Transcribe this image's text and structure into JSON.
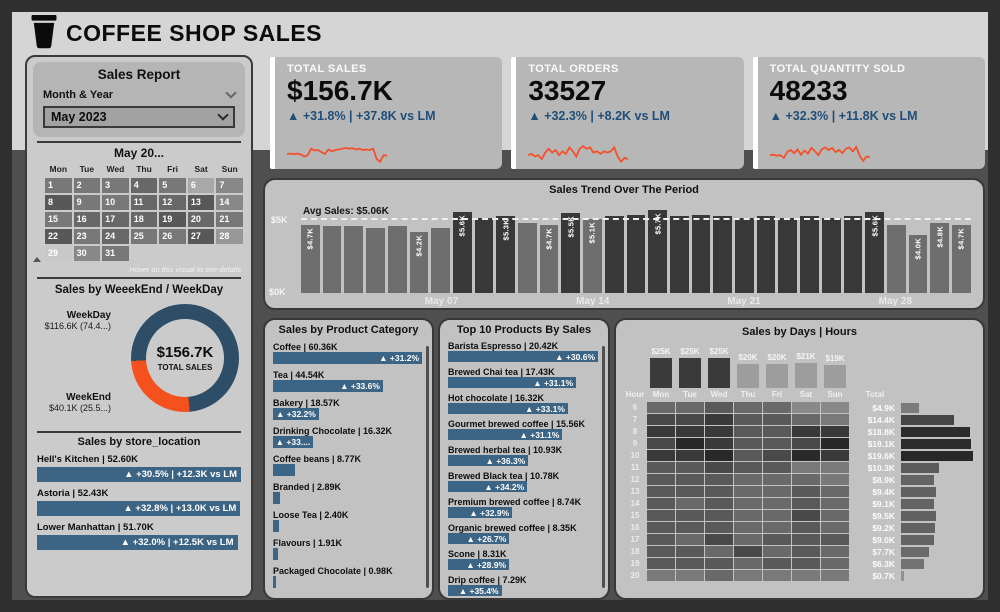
{
  "header": {
    "icon": "coffee-cup-icon",
    "title": "COFFEE SHOP SALES"
  },
  "colors": {
    "accent_blue": "#1f4e79",
    "bar_blue": "#3c6484",
    "orange": "#f4502a",
    "trend_dark": "#383838",
    "trend_gray": "#6e6e6e"
  },
  "sidebar": {
    "title": "Sales Report",
    "slicer": {
      "label": "Month & Year"
    },
    "dropdown": {
      "value": "May 2023"
    },
    "calendar": {
      "title": "May 20...",
      "weekdays": [
        "Mon",
        "Tue",
        "Wed",
        "Thu",
        "Fri",
        "Sat",
        "Sun"
      ],
      "note": "Hover on this visual to see details",
      "days": [
        {
          "day": 1,
          "heat": 5
        },
        {
          "day": 2,
          "heat": 5
        },
        {
          "day": 3,
          "heat": 5
        },
        {
          "day": 4,
          "heat": 6
        },
        {
          "day": 5,
          "heat": 5
        },
        {
          "day": 6,
          "heat": 2
        },
        {
          "day": 7,
          "heat": 4
        },
        {
          "day": 8,
          "heat": 7
        },
        {
          "day": 9,
          "heat": 5
        },
        {
          "day": 10,
          "heat": 5
        },
        {
          "day": 11,
          "heat": 6
        },
        {
          "day": 12,
          "heat": 6
        },
        {
          "day": 13,
          "heat": 7
        },
        {
          "day": 14,
          "heat": 4
        },
        {
          "day": 15,
          "heat": 5
        },
        {
          "day": 16,
          "heat": 6
        },
        {
          "day": 17,
          "heat": 6
        },
        {
          "day": 18,
          "heat": 6
        },
        {
          "day": 19,
          "heat": 7
        },
        {
          "day": 20,
          "heat": 6
        },
        {
          "day": 21,
          "heat": 5
        },
        {
          "day": 22,
          "heat": 7
        },
        {
          "day": 23,
          "heat": 5
        },
        {
          "day": 24,
          "heat": 6
        },
        {
          "day": 25,
          "heat": 5
        },
        {
          "day": 26,
          "heat": 5
        },
        {
          "day": 27,
          "heat": 7
        },
        {
          "day": 28,
          "heat": 3
        },
        {
          "day": 29,
          "heat": 0
        },
        {
          "day": 30,
          "heat": 4
        },
        {
          "day": 31,
          "heat": 5
        }
      ]
    }
  },
  "kpis": [
    {
      "title": "TOTAL SALES",
      "value": "$156.7K",
      "delta": "▲ +31.8% | +37.8K vs LM",
      "spark": [
        3.5,
        3.6,
        3.4,
        3.6,
        3.3,
        2.5,
        3.0,
        5.5,
        4.8,
        5.0,
        4.2,
        3.5,
        5.2,
        4.5,
        5.0,
        5.2,
        5.5,
        5.8,
        5.5,
        5.7,
        5.2,
        5.5,
        5.0,
        5.2,
        5.0,
        5.5,
        1.5,
        0.5,
        3.0,
        2.8
      ]
    },
    {
      "title": "TOTAL ORDERS",
      "value": "33527",
      "delta": "▲ +32.3% | +8.2K vs LM",
      "spark": [
        3.0,
        3.5,
        2.5,
        3.0,
        1.5,
        4.0,
        5.5,
        4.0,
        5.0,
        3.0,
        4.5,
        3.5,
        6.0,
        4.5,
        2.5,
        5.5,
        6.5,
        5.5,
        6.0,
        4.0,
        4.5,
        3.5,
        4.5,
        4.0,
        4.5,
        6.0,
        2.5,
        0.5,
        2.0,
        1.5
      ]
    },
    {
      "title": "TOTAL QUANTITY SOLD",
      "value": "48233",
      "delta": "▲ +32.3% | +11.8K vs LM",
      "spark": [
        3.0,
        3.2,
        2.8,
        3.0,
        2.0,
        4.2,
        5.0,
        3.8,
        5.2,
        3.2,
        4.8,
        3.6,
        5.8,
        4.6,
        3.0,
        5.2,
        6.0,
        5.0,
        5.8,
        4.2,
        5.0,
        3.8,
        5.5,
        6.0,
        4.5,
        6.2,
        2.8,
        0.8,
        2.5,
        2.2
      ]
    }
  ],
  "chart_data": [
    {
      "id": "sales_trend",
      "type": "bar",
      "title": "Sales Trend Over The Period",
      "avg_label": "Avg Sales: $5.06K",
      "avg_value": 5.06,
      "ylabel": "Sales",
      "ylim": [
        0,
        6
      ],
      "y_ticks": [
        "$5K",
        "$0K"
      ],
      "x_ticks": [
        {
          "label": "May 07",
          "day": 7
        },
        {
          "label": "May 14",
          "day": 14
        },
        {
          "label": "May 21",
          "day": 21
        },
        {
          "label": "May 28",
          "day": 28
        }
      ],
      "days": [
        {
          "day": 1,
          "value": 4.7,
          "label": "$4.7K"
        },
        {
          "day": 2,
          "value": 4.6
        },
        {
          "day": 3,
          "value": 4.6
        },
        {
          "day": 4,
          "value": 4.5
        },
        {
          "day": 5,
          "value": 4.6
        },
        {
          "day": 6,
          "value": 4.2,
          "label": "$4.2K"
        },
        {
          "day": 7,
          "value": 4.5
        },
        {
          "day": 8,
          "value": 5.6,
          "label": "$5.6K"
        },
        {
          "day": 9,
          "value": 5.2
        },
        {
          "day": 10,
          "value": 5.3,
          "label": "$5.3K"
        },
        {
          "day": 11,
          "value": 4.8
        },
        {
          "day": 12,
          "value": 4.7,
          "label": "$4.7K"
        },
        {
          "day": 13,
          "value": 5.5,
          "label": "$5.5K"
        },
        {
          "day": 14,
          "value": 5.1,
          "label": "$5.1K"
        },
        {
          "day": 15,
          "value": 5.3
        },
        {
          "day": 16,
          "value": 5.4
        },
        {
          "day": 17,
          "value": 5.7,
          "label": "$5.7K"
        },
        {
          "day": 18,
          "value": 5.3
        },
        {
          "day": 19,
          "value": 5.4
        },
        {
          "day": 20,
          "value": 5.3
        },
        {
          "day": 21,
          "value": 5.2
        },
        {
          "day": 22,
          "value": 5.3
        },
        {
          "day": 23,
          "value": 5.2
        },
        {
          "day": 24,
          "value": 5.3
        },
        {
          "day": 25,
          "value": 5.2
        },
        {
          "day": 26,
          "value": 5.3
        },
        {
          "day": 27,
          "value": 5.6,
          "label": "$5.6K"
        },
        {
          "day": 28,
          "value": 4.7
        },
        {
          "day": 29,
          "value": 4.0,
          "label": "$4.0K"
        },
        {
          "day": 30,
          "value": 4.8,
          "label": "$4.8K"
        },
        {
          "day": 31,
          "value": 4.7,
          "label": "$4.7K"
        }
      ]
    },
    {
      "id": "sales_by_product_category",
      "type": "bar",
      "title": "Sales by Product Category",
      "rows": [
        {
          "label": "Coffee | 60.36K",
          "value": 60.36,
          "delta": "▲ +31.2%"
        },
        {
          "label": "Tea | 44.54K",
          "value": 44.54,
          "delta": "▲ +33.6%"
        },
        {
          "label": "Bakery | 18.57K",
          "value": 18.57,
          "delta": "▲ +32.2%"
        },
        {
          "label": "Drinking Chocolate | 16.32K",
          "value": 16.32,
          "delta": "▲ +33...."
        },
        {
          "label": "Coffee beans | 8.77K",
          "value": 8.77,
          "delta": ""
        },
        {
          "label": "Branded | 2.89K",
          "value": 2.89,
          "delta": ""
        },
        {
          "label": "Loose Tea | 2.40K",
          "value": 2.4,
          "delta": ""
        },
        {
          "label": "Flavours | 1.91K",
          "value": 1.91,
          "delta": ""
        },
        {
          "label": "Packaged Chocolate | 0.98K",
          "value": 0.98,
          "delta": ""
        }
      ]
    },
    {
      "id": "top_10_products_by_sales",
      "type": "bar",
      "title": "Top 10 Products By Sales",
      "rows": [
        {
          "label": "Barista Espresso | 20.42K",
          "value": 20.42,
          "delta": "▲ +30.6%"
        },
        {
          "label": "Brewed Chai tea | 17.43K",
          "value": 17.43,
          "delta": "▲ +31.1%"
        },
        {
          "label": "Hot chocolate | 16.32K",
          "value": 16.32,
          "delta": "▲ +33.1%"
        },
        {
          "label": "Gourmet brewed coffee | 15.56K",
          "value": 15.56,
          "delta": "▲ +31.1%"
        },
        {
          "label": "Brewed herbal tea | 10.93K",
          "value": 10.93,
          "delta": "▲ +36.3%"
        },
        {
          "label": "Brewed Black tea | 10.78K",
          "value": 10.78,
          "delta": "▲ +34.2%"
        },
        {
          "label": "Premium brewed coffee | 8.74K",
          "value": 8.74,
          "delta": "▲ +32.9%"
        },
        {
          "label": "Organic brewed coffee | 8.35K",
          "value": 8.35,
          "delta": "▲ +26.7%"
        },
        {
          "label": "Scone | 8.31K",
          "value": 8.31,
          "delta": "▲ +28.9%"
        },
        {
          "label": "Drip coffee | 7.29K",
          "value": 7.29,
          "delta": "▲ +35.4%"
        }
      ]
    },
    {
      "id": "sales_by_days_hours",
      "type": "heatmap",
      "title": "Sales by Days | Hours",
      "corner_header": "Hour",
      "total_header": "Total",
      "col_max": 25,
      "total_max": 19.6,
      "day_columns": [
        {
          "day": "Mon",
          "label": "$25K",
          "value": 25,
          "dark": true
        },
        {
          "day": "Tue",
          "label": "$25K",
          "value": 25,
          "dark": true
        },
        {
          "day": "Wed",
          "label": "$25K",
          "value": 25,
          "dark": true
        },
        {
          "day": "Thu",
          "label": "$20K",
          "value": 20,
          "dark": false
        },
        {
          "day": "Fri",
          "label": "$20K",
          "value": 20,
          "dark": false
        },
        {
          "day": "Sat",
          "label": "$21K",
          "value": 21,
          "dark": false
        },
        {
          "day": "Sun",
          "label": "$19K",
          "value": 19,
          "dark": false
        }
      ],
      "rows": [
        {
          "hour": 6,
          "heat": [
            5,
            5,
            6,
            5,
            5,
            3,
            3
          ],
          "total": 4.9,
          "total_label": "$4.9K"
        },
        {
          "hour": 7,
          "heat": [
            7,
            7,
            8,
            6,
            6,
            5,
            4
          ],
          "total": 14.4,
          "total_label": "$14.4K"
        },
        {
          "hour": 8,
          "heat": [
            8,
            8,
            8,
            6,
            6,
            8,
            8
          ],
          "total": 18.8,
          "total_label": "$18.8K"
        },
        {
          "hour": 9,
          "heat": [
            7,
            9,
            8,
            6,
            6,
            7,
            9
          ],
          "total": 19.1,
          "total_label": "$19.1K"
        },
        {
          "hour": 10,
          "heat": [
            8,
            8,
            9,
            6,
            7,
            9,
            8
          ],
          "total": 19.6,
          "total_label": "$19.6K"
        },
        {
          "hour": 11,
          "heat": [
            6,
            6,
            7,
            6,
            6,
            4,
            4
          ],
          "total": 10.3,
          "total_label": "$10.3K"
        },
        {
          "hour": 12,
          "heat": [
            6,
            6,
            6,
            5,
            5,
            5,
            4
          ],
          "total": 8.9,
          "total_label": "$8.9K"
        },
        {
          "hour": 13,
          "heat": [
            6,
            6,
            6,
            5,
            5,
            6,
            5
          ],
          "total": 9.4,
          "total_label": "$9.4K"
        },
        {
          "hour": 14,
          "heat": [
            6,
            5,
            6,
            5,
            5,
            6,
            5
          ],
          "total": 9.1,
          "total_label": "$9.1K"
        },
        {
          "hour": 15,
          "heat": [
            6,
            6,
            6,
            5,
            5,
            7,
            5
          ],
          "total": 9.5,
          "total_label": "$9.5K"
        },
        {
          "hour": 16,
          "heat": [
            6,
            6,
            6,
            5,
            5,
            6,
            5
          ],
          "total": 9.2,
          "total_label": "$9.2K"
        },
        {
          "hour": 17,
          "heat": [
            6,
            5,
            7,
            5,
            6,
            6,
            6
          ],
          "total": 9.0,
          "total_label": "$9.0K"
        },
        {
          "hour": 18,
          "heat": [
            6,
            6,
            5,
            7,
            5,
            6,
            5
          ],
          "total": 7.7,
          "total_label": "$7.7K"
        },
        {
          "hour": 19,
          "heat": [
            6,
            6,
            6,
            5,
            6,
            6,
            5
          ],
          "total": 6.3,
          "total_label": "$6.3K"
        },
        {
          "hour": 20,
          "heat": [
            4,
            4,
            5,
            4,
            4,
            4,
            4
          ],
          "total": 0.7,
          "total_label": "$0.7K"
        }
      ]
    },
    {
      "id": "weekend_weekday_donut",
      "type": "pie",
      "title": "Sales by WeeekEnd / WeekDay",
      "center_value": "$156.7K",
      "center_label": "TOTAL SALES",
      "slices": [
        {
          "name": "WeekDay",
          "label": "$116.6K (74.4...)",
          "pct": 74.4,
          "color": "#2e4d66"
        },
        {
          "name": "WeekEnd",
          "label": "$40.1K (25.5...)",
          "pct": 25.5,
          "color": "#f4511e"
        }
      ]
    },
    {
      "id": "sales_by_store_location",
      "type": "bar",
      "title": "Sales by store_location",
      "rows": [
        {
          "label": "Hell's Kitchen | 52.60K",
          "value": 52.6,
          "delta": "▲ +30.5% | +12.3K vs LM"
        },
        {
          "label": "Astoria | 52.43K",
          "value": 52.43,
          "delta": "▲ +32.8% | +13.0K vs LM"
        },
        {
          "label": "Lower Manhattan | 51.70K",
          "value": 51.7,
          "delta": "▲ +32.0% | +12.5K vs LM"
        }
      ]
    }
  ]
}
